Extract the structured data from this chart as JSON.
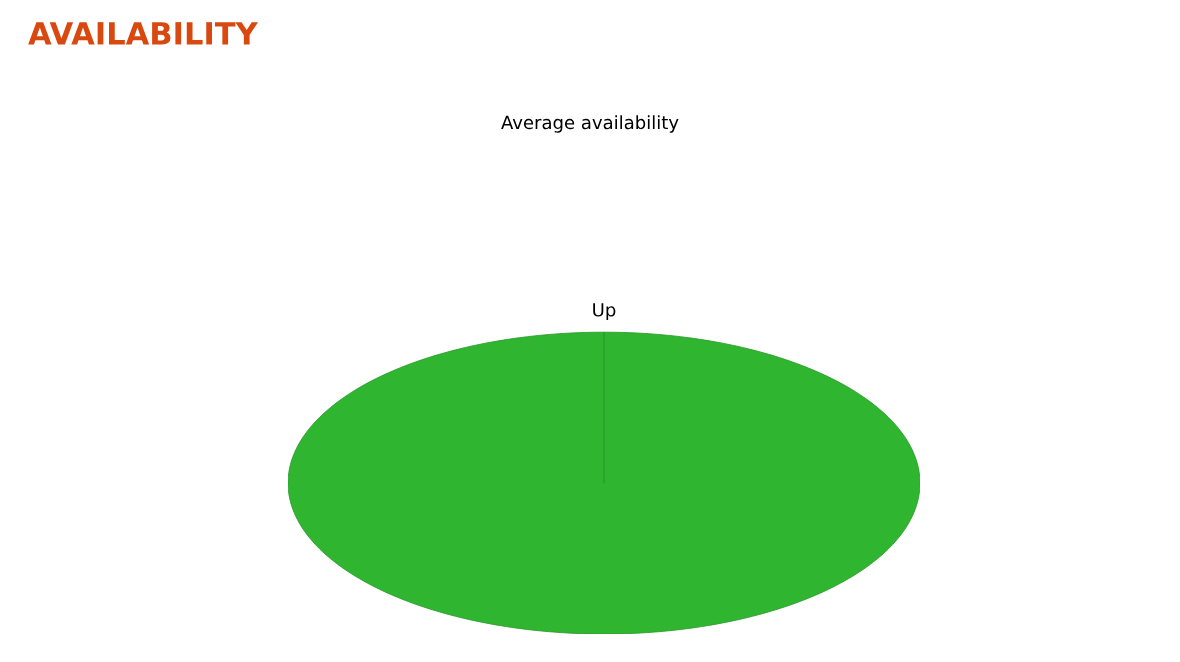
{
  "chart_data": {
    "type": "pie",
    "title": "AVAILABILITY",
    "subtitle": "Average availability",
    "categories": [
      "Up"
    ],
    "values": [
      100
    ],
    "colors": [
      "#2fb52f"
    ]
  }
}
